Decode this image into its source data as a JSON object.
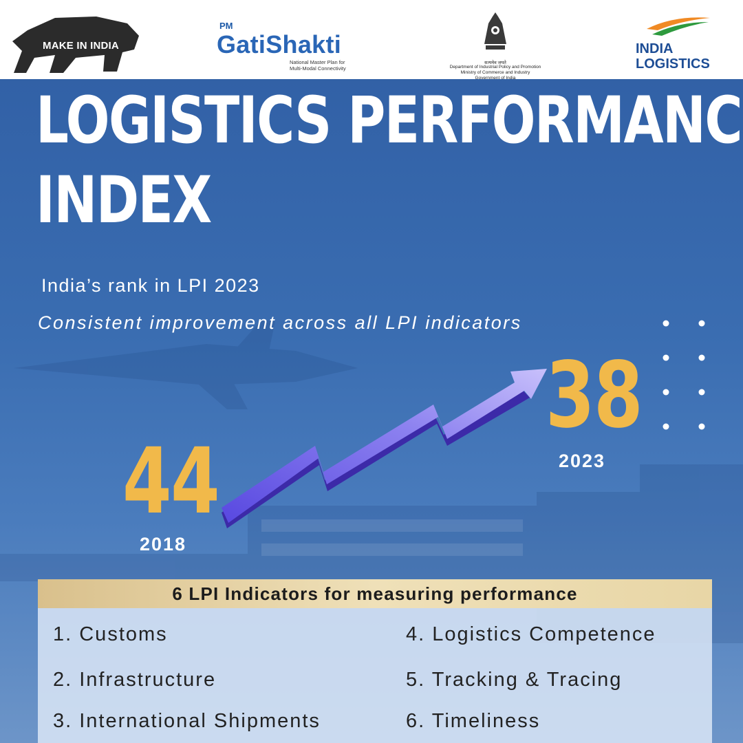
{
  "logos": {
    "make_in_india": "MAKE IN INDIA",
    "pm_gati_shakti": {
      "prefix": "PM",
      "name": "GatiShakti",
      "tagline_line1": "National Master Plan for",
      "tagline_line2": "Multi-Modal Connectivity"
    },
    "dpiit": {
      "motto": "सत्यमेव जयते",
      "line1": "Department of Industrial Policy and Promotion",
      "line2": "Ministry of Commerce and Industry",
      "line3": "Government of India"
    },
    "india_logistics": {
      "line1": "INDIA",
      "line2": "LOGISTICS"
    }
  },
  "heading": {
    "line1": "LOGISTICS PERFORMANCE",
    "line2": "INDEX"
  },
  "subtitle": "India’s rank in LPI 2023",
  "tagline": "Consistent improvement across all LPI indicators",
  "ranks": {
    "old": {
      "rank": "44",
      "year": "2018"
    },
    "new": {
      "rank": "38",
      "year": "2023"
    }
  },
  "indicators": {
    "title": "6 LPI Indicators for measuring performance",
    "items": [
      "1. Customs",
      "2. Infrastructure",
      "3. International Shipments",
      "4. Logistics Competence",
      "5. Tracking & Tracing",
      "6. Timeliness"
    ]
  },
  "colors": {
    "background": "#3a6db1",
    "accent_gold": "#f1b94a",
    "arrow": "#7a6ef0",
    "header_band": "#e6d3a2"
  }
}
